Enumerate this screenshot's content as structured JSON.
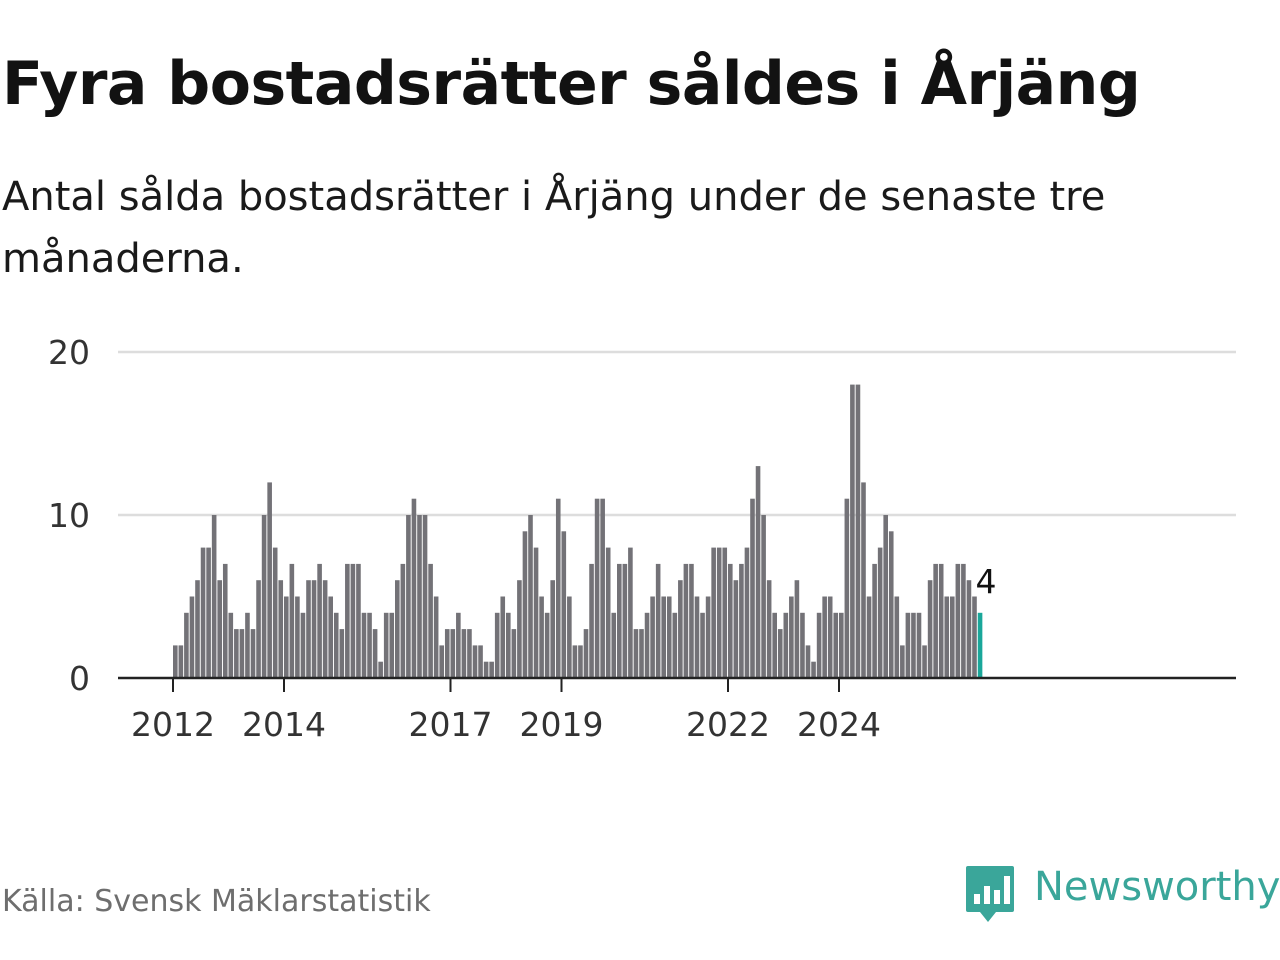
{
  "title": "Fyra bostadsrätter såldes i Årjäng",
  "subtitle": "Antal sålda bostadsrätter i Årjäng under de senaste tre månaderna.",
  "source": "Källa: Svensk Mäklarstatistik",
  "brand": "Newsworthy",
  "colors": {
    "bar": "#737277",
    "highlight": "#1aa79a",
    "grid": "#dddddd",
    "axis": "#222222",
    "brand": "#3aa69a"
  },
  "chart_data": {
    "type": "bar",
    "title": "Fyra bostadsrätter såldes i Årjäng",
    "xlabel": "",
    "ylabel": "",
    "ylim": [
      0,
      20
    ],
    "yticks": [
      0,
      10,
      20
    ],
    "start": {
      "year": 2011,
      "month": 12
    },
    "x_ticks": [
      {
        "label": "2012",
        "index": 0
      },
      {
        "label": "2014",
        "index": 20
      },
      {
        "label": "2017",
        "index": 50
      },
      {
        "label": "2019",
        "index": 70
      },
      {
        "label": "2022",
        "index": 100
      },
      {
        "label": "2024",
        "index": 120
      }
    ],
    "values": [
      2,
      2,
      4,
      5,
      6,
      8,
      8,
      10,
      6,
      7,
      4,
      3,
      3,
      4,
      3,
      6,
      10,
      12,
      8,
      6,
      5,
      7,
      5,
      4,
      6,
      6,
      7,
      6,
      5,
      4,
      3,
      7,
      7,
      7,
      4,
      4,
      3,
      1,
      4,
      4,
      6,
      7,
      10,
      11,
      10,
      10,
      7,
      5,
      2,
      3,
      3,
      4,
      3,
      3,
      2,
      2,
      1,
      1,
      4,
      5,
      4,
      3,
      6,
      9,
      10,
      8,
      5,
      4,
      6,
      11,
      9,
      5,
      2,
      2,
      3,
      7,
      11,
      11,
      8,
      4,
      7,
      7,
      8,
      3,
      3,
      4,
      5,
      7,
      5,
      5,
      4,
      6,
      7,
      7,
      5,
      4,
      5,
      8,
      8,
      8,
      7,
      6,
      7,
      8,
      11,
      13,
      10,
      6,
      4,
      3,
      4,
      5,
      6,
      4,
      2,
      1,
      4,
      5,
      5,
      4,
      4,
      11,
      18,
      18,
      12,
      5,
      7,
      8,
      10,
      9,
      5,
      2,
      4,
      4,
      4,
      2,
      6,
      7,
      7,
      5,
      5,
      7,
      7,
      6,
      5,
      4
    ],
    "highlight_index": 145,
    "annotation": "4"
  }
}
